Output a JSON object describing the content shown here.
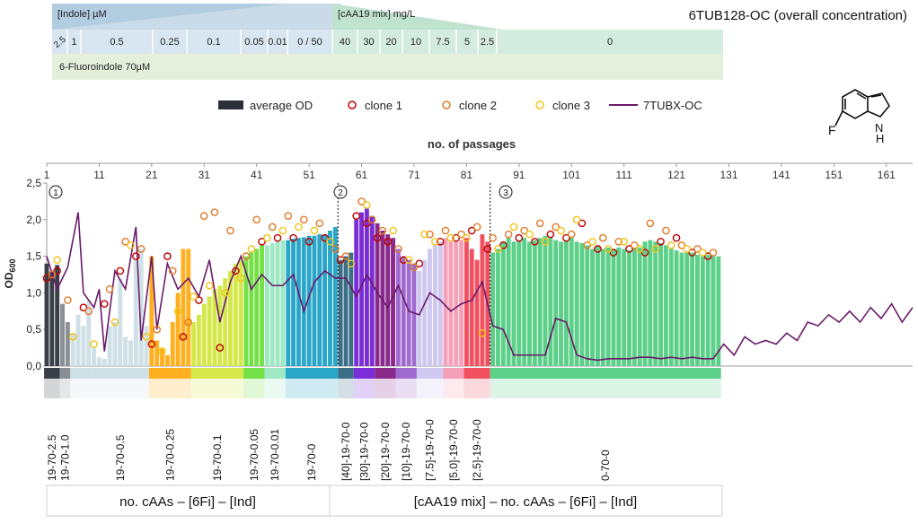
{
  "title": "6TUB128-OC (overall concentration)",
  "header": {
    "indole_label": "[Indole] µM",
    "caa_label": "[cAA19 mix] mg/L",
    "concentration_cells": [
      "2.5",
      "1",
      "0.5",
      "0.25",
      "0.1",
      "0.05",
      "0.01",
      "0 / 50",
      "40",
      "30",
      "20",
      "10",
      "7.5",
      "5",
      "2.5",
      "0"
    ],
    "fluoroindole_label": "6-Fluoroindole 70µM"
  },
  "molecule": {
    "label_f": "F",
    "label_nh": "N",
    "label_h": "H"
  },
  "legend": {
    "average_od": "average OD",
    "clone1": "clone 1",
    "clone2": "clone 2",
    "clone3": "clone 3",
    "tubx": "7TUBX-OC"
  },
  "colors": {
    "clone1": "#c00000",
    "clone2": "#e07a2a",
    "clone3": "#f2c418",
    "tubx": "#6a1a6a",
    "avg": "#2b3038"
  },
  "phase_labels": [
    "1",
    "2",
    "3"
  ],
  "bottom": {
    "left_label": "no. cAAs – [6Fi] – [Ind]",
    "right_label": "[cAA19 mix] – no. cAAs – [6Fi] – [Ind]"
  },
  "chart_data": {
    "type": "bar",
    "title": "6TUB128-OC (overall concentration)",
    "xlabel": "no. of passages",
    "ylabel": "OD600",
    "xlim": [
      1,
      166
    ],
    "ylim": [
      0,
      2.5
    ],
    "x_ticks": [
      1,
      11,
      21,
      31,
      41,
      51,
      61,
      71,
      81,
      91,
      101,
      111,
      121,
      131,
      141,
      151,
      161
    ],
    "y_ticks": [
      "0,0",
      "0,5",
      "1,0",
      "1,5",
      "2,0",
      "2,5"
    ],
    "phase_boundaries": [
      56,
      85
    ],
    "stages": [
      {
        "label": "19-70-2.5",
        "from": 1,
        "to": 3,
        "color": "#3b4048",
        "od": [
          1.4,
          1.3,
          1.38
        ]
      },
      {
        "label": "19-70-1.0",
        "from": 4,
        "to": 5,
        "color": "#8a8f96",
        "od": [
          0.85,
          0.6
        ]
      },
      {
        "label": "",
        "from": 6,
        "to": 9,
        "color": "#cfe0e6",
        "od": [
          0.45,
          0.7,
          0.55,
          0.9
        ]
      },
      {
        "label": "19-70-0.5",
        "from": 10,
        "to": 20,
        "color": "#cfe0e6",
        "od": [
          0.25,
          0.12,
          0.1,
          0.55,
          0.6,
          1.2,
          0.4,
          0.35,
          1.45,
          1.6,
          0.55
        ]
      },
      {
        "label": "19-70-0.25",
        "from": 21,
        "to": 28,
        "color": "#ffb020",
        "od": [
          1.5,
          0.35,
          0.25,
          0.15,
          0.6,
          1.0,
          1.6,
          1.6
        ]
      },
      {
        "label": "19-70-0.1",
        "from": 29,
        "to": 38,
        "color": "#d4e84a",
        "od": [
          0.6,
          0.7,
          0.85,
          0.95,
          1.05,
          1.1,
          1.2,
          1.3,
          1.4,
          1.45
        ]
      },
      {
        "label": "19-70-0.05",
        "from": 39,
        "to": 42,
        "color": "#73e045",
        "od": [
          1.5,
          1.55,
          1.6,
          1.65
        ]
      },
      {
        "label": "19-70-0.01",
        "from": 43,
        "to": 46,
        "color": "#9ee8c4",
        "od": [
          1.65,
          1.68,
          1.7,
          1.72
        ]
      },
      {
        "label": "19-70-0",
        "from": 47,
        "to": 56,
        "color": "#2aa6c8",
        "od": [
          1.72,
          1.74,
          1.75,
          1.76,
          1.78,
          1.78,
          1.8,
          1.8,
          1.85,
          1.9
        ]
      },
      {
        "label": "[40]-19-70-0",
        "from": 57,
        "to": 59,
        "color": "#3b6f88",
        "od": [
          1.45,
          1.5,
          1.55
        ]
      },
      {
        "label": "[30]-19-70-0",
        "from": 60,
        "to": 63,
        "color": "#7a2dd8",
        "od": [
          2.0,
          2.1,
          2.15,
          2.05
        ]
      },
      {
        "label": "[20]-19-70-0",
        "from": 64,
        "to": 67,
        "color": "#8a2a8a",
        "od": [
          1.95,
          1.85,
          1.8,
          1.75
        ]
      },
      {
        "label": "[10]-19-70-0",
        "from": 68,
        "to": 71,
        "color": "#a06ad0",
        "od": [
          1.6,
          1.5,
          1.45,
          1.4
        ]
      },
      {
        "label": "[7.5]-19-70-0",
        "from": 72,
        "to": 76,
        "color": "#cfc8f0",
        "od": [
          1.3,
          1.45,
          1.6,
          1.65,
          1.7
        ]
      },
      {
        "label": "[5.0]-19-70-0",
        "from": 77,
        "to": 80,
        "color": "#f4a0b8",
        "od": [
          1.75,
          1.7,
          1.7,
          1.72
        ]
      },
      {
        "label": "[2.5]-19-70-0",
        "from": 81,
        "to": 85,
        "color": "#f05060",
        "od": [
          1.75,
          1.6,
          1.45,
          1.8,
          1.7
        ]
      },
      {
        "label": "0-70-0",
        "from": 86,
        "to": 129,
        "color": "#5ccf88",
        "od": [
          1.55,
          1.6,
          1.7,
          1.75,
          1.7,
          1.72,
          1.75,
          1.7,
          1.72,
          1.75,
          1.78,
          1.75,
          1.72,
          1.7,
          1.72,
          1.75,
          1.7,
          1.68,
          1.65,
          1.6,
          1.65,
          1.6,
          1.62,
          1.6,
          1.62,
          1.6,
          1.58,
          1.6,
          1.62,
          1.7,
          1.72,
          1.7,
          1.68,
          1.65,
          1.6,
          1.58,
          1.55,
          1.55,
          1.55,
          1.52,
          1.5,
          1.52,
          1.5,
          1.5
        ]
      }
    ],
    "series": [
      {
        "name": "clone 1",
        "color": "#c00000",
        "x": [
          1,
          3,
          8,
          12,
          15,
          18,
          21,
          24,
          27,
          30,
          34,
          37,
          42,
          45,
          48,
          51,
          54,
          57,
          60,
          62,
          64,
          66,
          69,
          72,
          76,
          79,
          82,
          85,
          88,
          91,
          94,
          97,
          100,
          103,
          106,
          109,
          112,
          115,
          118,
          121,
          124,
          127
        ],
        "y": [
          1.2,
          1.3,
          0.8,
          0.85,
          1.3,
          1.5,
          0.3,
          1.5,
          0.4,
          0.9,
          0.25,
          1.3,
          1.7,
          1.75,
          1.75,
          1.7,
          1.75,
          1.45,
          2.05,
          1.95,
          1.75,
          1.7,
          1.45,
          1.4,
          1.7,
          1.75,
          1.85,
          1.6,
          1.65,
          1.75,
          1.7,
          1.8,
          1.75,
          1.95,
          1.6,
          1.55,
          1.6,
          1.55,
          1.7,
          1.75,
          1.55,
          1.5
        ]
      },
      {
        "name": "clone 2",
        "color": "#e07a2a",
        "x": [
          2,
          5,
          9,
          13,
          16,
          19,
          22,
          25,
          28,
          31,
          33,
          36,
          39,
          41,
          44,
          47,
          50,
          53,
          56,
          58,
          61,
          63,
          65,
          68,
          71,
          74,
          77,
          80,
          83,
          86,
          89,
          92,
          95,
          98,
          101,
          104,
          107,
          110,
          113,
          116,
          119,
          122,
          125,
          128
        ],
        "y": [
          1.25,
          0.9,
          0.75,
          1.05,
          1.7,
          1.6,
          0.5,
          1.3,
          0.6,
          2.05,
          2.1,
          1.85,
          1.5,
          2.0,
          1.9,
          2.05,
          2.0,
          1.95,
          1.6,
          1.5,
          2.25,
          2.0,
          1.85,
          1.6,
          1.35,
          1.8,
          1.85,
          1.8,
          1.9,
          1.75,
          1.8,
          1.85,
          1.95,
          1.9,
          1.8,
          1.65,
          1.75,
          1.7,
          1.65,
          1.95,
          1.85,
          1.65,
          1.6,
          1.55
        ]
      },
      {
        "name": "clone 3",
        "color": "#f2c418",
        "x": [
          3,
          6,
          10,
          14,
          17,
          20,
          23,
          26,
          29,
          32,
          35,
          38,
          40,
          43,
          46,
          49,
          52,
          55,
          59,
          62,
          67,
          70,
          73,
          75,
          78,
          81,
          84,
          87,
          90,
          93,
          96,
          99,
          102,
          105,
          108,
          111,
          114,
          117,
          120,
          123,
          126
        ],
        "y": [
          1.45,
          0.4,
          0.3,
          0.6,
          1.65,
          0.4,
          0.2,
          0.75,
          0.95,
          1.1,
          1.0,
          1.2,
          1.6,
          1.75,
          1.85,
          1.9,
          1.85,
          1.7,
          1.4,
          2.2,
          1.85,
          1.45,
          1.8,
          1.7,
          1.75,
          1.75,
          0.45,
          1.6,
          1.9,
          1.8,
          1.7,
          1.85,
          2.0,
          1.7,
          1.6,
          1.7,
          1.6,
          1.6,
          1.65,
          1.6,
          1.55
        ]
      },
      {
        "name": "7TUBX-OC",
        "color": "#6a1a6a",
        "type": "line",
        "x": [
          1,
          3,
          5,
          7,
          8,
          10,
          11,
          12,
          14,
          16,
          18,
          19,
          21,
          22,
          24,
          26,
          28,
          30,
          32,
          34,
          36,
          38,
          40,
          42,
          44,
          46,
          48,
          50,
          52,
          54,
          56,
          58,
          60,
          62,
          64,
          66,
          68,
          70,
          72,
          74,
          76,
          78,
          80,
          82,
          84,
          86,
          88,
          90,
          92,
          94,
          96,
          98,
          100,
          102,
          104,
          106,
          108,
          110,
          112,
          114,
          116,
          118,
          120,
          122,
          124,
          126,
          128,
          130,
          132,
          134,
          136,
          138,
          140,
          142,
          144,
          146,
          148,
          150,
          152,
          154,
          156,
          158,
          160,
          162,
          164,
          166
        ],
        "y": [
          1.5,
          1.05,
          1.35,
          2.1,
          1.0,
          0.8,
          1.05,
          0.2,
          1.3,
          1.05,
          1.9,
          0.35,
          1.5,
          0.5,
          1.4,
          1.05,
          1.2,
          0.95,
          1.45,
          0.6,
          1.15,
          1.5,
          1.05,
          1.25,
          1.1,
          1.1,
          1.25,
          0.75,
          1.15,
          1.3,
          1.2,
          1.2,
          0.95,
          1.25,
          1.0,
          0.8,
          1.1,
          0.75,
          0.7,
          1.0,
          0.9,
          0.75,
          0.85,
          0.9,
          1.15,
          0.55,
          0.5,
          0.15,
          0.15,
          0.15,
          0.15,
          0.65,
          0.6,
          0.15,
          0.1,
          0.08,
          0.1,
          0.1,
          0.1,
          0.12,
          0.12,
          0.1,
          0.12,
          0.1,
          0.12,
          0.1,
          0.1,
          0.3,
          0.15,
          0.4,
          0.3,
          0.35,
          0.3,
          0.45,
          0.35,
          0.6,
          0.55,
          0.7,
          0.6,
          0.75,
          0.6,
          0.8,
          0.65,
          0.85,
          0.6,
          0.8
        ]
      }
    ]
  }
}
